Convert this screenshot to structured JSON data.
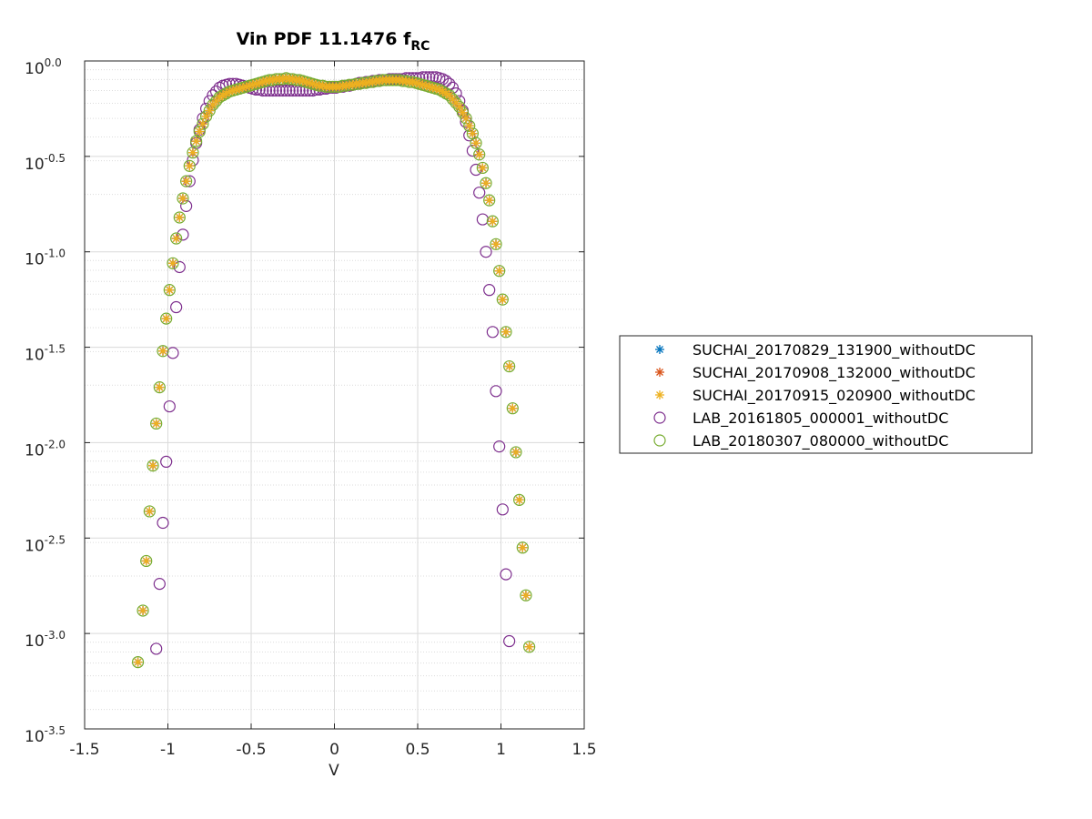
{
  "chart_data": {
    "type": "scatter",
    "title": "Vin PDF 11.1476 f",
    "title_subscript": "RC",
    "xlabel": "V",
    "ylabel": "",
    "xlim": [
      -1.5,
      1.5
    ],
    "ylim_log10": [
      -3.5,
      0
    ],
    "y_scale": "log",
    "x_ticks": [
      "-1.5",
      "-1",
      "-0.5",
      "0",
      "0.5",
      "1",
      "1.5"
    ],
    "y_ticks": [
      {
        "base": "10",
        "exp": "0.0"
      },
      {
        "base": "10",
        "exp": "-0.5"
      },
      {
        "base": "10",
        "exp": "-1.0"
      },
      {
        "base": "10",
        "exp": "-1.5"
      },
      {
        "base": "10",
        "exp": "-2.0"
      },
      {
        "base": "10",
        "exp": "-2.5"
      },
      {
        "base": "10",
        "exp": "-3.0"
      },
      {
        "base": "10",
        "exp": "-3.5"
      }
    ],
    "grid": true,
    "minor_grid": true,
    "legend_position": "outside-right",
    "series": [
      {
        "name": "SUCHAI_20170829_131900_withoutDC",
        "marker": "asterisk",
        "color": "#0072BD"
      },
      {
        "name": "SUCHAI_20170908_132000_withoutDC",
        "marker": "asterisk",
        "color": "#D95319"
      },
      {
        "name": "SUCHAI_20170915_020900_withoutDC",
        "marker": "asterisk",
        "color": "#EDB120"
      },
      {
        "name": "LAB_20161805_000001_withoutDC",
        "marker": "circle",
        "color": "#7E2F8E"
      },
      {
        "name": "LAB_20180307_080000_withoutDC",
        "marker": "circle",
        "color": "#77AC30"
      }
    ],
    "suchai_points": [
      [
        -1.18,
        -3.15
      ],
      [
        -1.15,
        -2.88
      ],
      [
        -1.13,
        -2.62
      ],
      [
        -1.11,
        -2.36
      ],
      [
        -1.09,
        -2.12
      ],
      [
        -1.07,
        -1.9
      ],
      [
        -1.05,
        -1.71
      ],
      [
        -1.03,
        -1.52
      ],
      [
        -1.01,
        -1.35
      ],
      [
        -0.99,
        -1.2
      ],
      [
        -0.97,
        -1.06
      ],
      [
        -0.95,
        -0.93
      ],
      [
        -0.93,
        -0.82
      ],
      [
        -0.91,
        -0.72
      ],
      [
        -0.89,
        -0.63
      ],
      [
        -0.87,
        -0.55
      ],
      [
        -0.85,
        -0.48
      ],
      [
        -0.83,
        -0.42
      ],
      [
        -0.81,
        -0.37
      ],
      [
        -0.79,
        -0.33
      ],
      [
        -0.77,
        -0.29
      ],
      [
        -0.75,
        -0.26
      ],
      [
        -0.73,
        -0.23
      ],
      [
        -0.71,
        -0.21
      ],
      [
        -0.69,
        -0.19
      ],
      [
        -0.67,
        -0.18
      ],
      [
        -0.65,
        -0.17
      ],
      [
        -0.63,
        -0.16
      ],
      [
        -0.61,
        -0.155
      ],
      [
        -0.59,
        -0.15
      ],
      [
        -0.57,
        -0.145
      ],
      [
        -0.55,
        -0.14
      ],
      [
        -0.53,
        -0.135
      ],
      [
        -0.51,
        -0.13
      ],
      [
        -0.49,
        -0.125
      ],
      [
        -0.47,
        -0.12
      ],
      [
        -0.45,
        -0.115
      ],
      [
        -0.43,
        -0.11
      ],
      [
        -0.41,
        -0.105
      ],
      [
        -0.39,
        -0.1
      ],
      [
        -0.37,
        -0.1
      ],
      [
        -0.35,
        -0.095
      ],
      [
        -0.33,
        -0.095
      ],
      [
        -0.31,
        -0.095
      ],
      [
        -0.29,
        -0.09
      ],
      [
        -0.27,
        -0.095
      ],
      [
        -0.25,
        -0.095
      ],
      [
        -0.23,
        -0.1
      ],
      [
        -0.21,
        -0.1
      ],
      [
        -0.19,
        -0.105
      ],
      [
        -0.17,
        -0.11
      ],
      [
        -0.15,
        -0.115
      ],
      [
        -0.13,
        -0.12
      ],
      [
        -0.11,
        -0.125
      ],
      [
        -0.09,
        -0.13
      ],
      [
        -0.07,
        -0.13
      ],
      [
        -0.05,
        -0.135
      ],
      [
        -0.03,
        -0.135
      ],
      [
        -0.01,
        -0.135
      ],
      [
        0.01,
        -0.135
      ],
      [
        0.03,
        -0.135
      ],
      [
        0.05,
        -0.13
      ],
      [
        0.07,
        -0.13
      ],
      [
        0.09,
        -0.125
      ],
      [
        0.11,
        -0.125
      ],
      [
        0.13,
        -0.12
      ],
      [
        0.15,
        -0.12
      ],
      [
        0.17,
        -0.115
      ],
      [
        0.19,
        -0.115
      ],
      [
        0.21,
        -0.11
      ],
      [
        0.23,
        -0.11
      ],
      [
        0.25,
        -0.105
      ],
      [
        0.27,
        -0.105
      ],
      [
        0.29,
        -0.1
      ],
      [
        0.31,
        -0.1
      ],
      [
        0.33,
        -0.1
      ],
      [
        0.35,
        -0.1
      ],
      [
        0.37,
        -0.1
      ],
      [
        0.39,
        -0.1
      ],
      [
        0.41,
        -0.105
      ],
      [
        0.43,
        -0.105
      ],
      [
        0.45,
        -0.11
      ],
      [
        0.47,
        -0.11
      ],
      [
        0.49,
        -0.115
      ],
      [
        0.51,
        -0.12
      ],
      [
        0.53,
        -0.125
      ],
      [
        0.55,
        -0.13
      ],
      [
        0.57,
        -0.135
      ],
      [
        0.59,
        -0.14
      ],
      [
        0.61,
        -0.145
      ],
      [
        0.63,
        -0.15
      ],
      [
        0.65,
        -0.16
      ],
      [
        0.67,
        -0.17
      ],
      [
        0.69,
        -0.18
      ],
      [
        0.71,
        -0.2
      ],
      [
        0.73,
        -0.22
      ],
      [
        0.75,
        -0.24
      ],
      [
        0.77,
        -0.27
      ],
      [
        0.79,
        -0.3
      ],
      [
        0.81,
        -0.34
      ],
      [
        0.83,
        -0.38
      ],
      [
        0.85,
        -0.43
      ],
      [
        0.87,
        -0.49
      ],
      [
        0.89,
        -0.56
      ],
      [
        0.91,
        -0.64
      ],
      [
        0.93,
        -0.73
      ],
      [
        0.95,
        -0.84
      ],
      [
        0.97,
        -0.96
      ],
      [
        0.99,
        -1.1
      ],
      [
        1.01,
        -1.25
      ],
      [
        1.03,
        -1.42
      ],
      [
        1.05,
        -1.6
      ],
      [
        1.07,
        -1.82
      ],
      [
        1.09,
        -2.05
      ],
      [
        1.11,
        -2.3
      ],
      [
        1.13,
        -2.55
      ],
      [
        1.15,
        -2.8
      ],
      [
        1.17,
        -3.07
      ]
    ],
    "lab_2016_points": [
      [
        -1.07,
        -3.08
      ],
      [
        -1.05,
        -2.74
      ],
      [
        -1.03,
        -2.42
      ],
      [
        -1.01,
        -2.1
      ],
      [
        -0.99,
        -1.81
      ],
      [
        -0.97,
        -1.53
      ],
      [
        -0.95,
        -1.29
      ],
      [
        -0.93,
        -1.08
      ],
      [
        -0.91,
        -0.91
      ],
      [
        -0.89,
        -0.76
      ],
      [
        -0.87,
        -0.63
      ],
      [
        -0.85,
        -0.52
      ],
      [
        -0.83,
        -0.43
      ],
      [
        -0.81,
        -0.36
      ],
      [
        -0.79,
        -0.3
      ],
      [
        -0.77,
        -0.25
      ],
      [
        -0.75,
        -0.21
      ],
      [
        -0.73,
        -0.18
      ],
      [
        -0.71,
        -0.16
      ],
      [
        -0.69,
        -0.14
      ],
      [
        -0.67,
        -0.13
      ],
      [
        -0.65,
        -0.125
      ],
      [
        -0.63,
        -0.12
      ],
      [
        -0.61,
        -0.12
      ],
      [
        -0.59,
        -0.12
      ],
      [
        -0.57,
        -0.125
      ],
      [
        -0.55,
        -0.13
      ],
      [
        -0.53,
        -0.135
      ],
      [
        -0.51,
        -0.14
      ],
      [
        -0.49,
        -0.145
      ],
      [
        -0.47,
        -0.15
      ],
      [
        -0.45,
        -0.15
      ],
      [
        -0.43,
        -0.155
      ],
      [
        -0.41,
        -0.155
      ],
      [
        -0.39,
        -0.155
      ],
      [
        -0.37,
        -0.155
      ],
      [
        -0.35,
        -0.155
      ],
      [
        -0.33,
        -0.155
      ],
      [
        -0.31,
        -0.155
      ],
      [
        -0.29,
        -0.155
      ],
      [
        -0.27,
        -0.155
      ],
      [
        -0.25,
        -0.155
      ],
      [
        -0.23,
        -0.155
      ],
      [
        -0.21,
        -0.155
      ],
      [
        -0.19,
        -0.155
      ],
      [
        -0.17,
        -0.155
      ],
      [
        -0.15,
        -0.155
      ],
      [
        -0.13,
        -0.155
      ],
      [
        -0.11,
        -0.15
      ],
      [
        -0.09,
        -0.15
      ],
      [
        -0.07,
        -0.145
      ],
      [
        -0.05,
        -0.145
      ],
      [
        -0.03,
        -0.14
      ],
      [
        -0.01,
        -0.14
      ],
      [
        0.01,
        -0.14
      ],
      [
        0.03,
        -0.135
      ],
      [
        0.05,
        -0.135
      ],
      [
        0.07,
        -0.13
      ],
      [
        0.09,
        -0.13
      ],
      [
        0.11,
        -0.125
      ],
      [
        0.13,
        -0.12
      ],
      [
        0.15,
        -0.115
      ],
      [
        0.17,
        -0.115
      ],
      [
        0.19,
        -0.11
      ],
      [
        0.21,
        -0.11
      ],
      [
        0.23,
        -0.105
      ],
      [
        0.25,
        -0.105
      ],
      [
        0.27,
        -0.1
      ],
      [
        0.29,
        -0.1
      ],
      [
        0.31,
        -0.1
      ],
      [
        0.33,
        -0.095
      ],
      [
        0.35,
        -0.095
      ],
      [
        0.37,
        -0.095
      ],
      [
        0.39,
        -0.095
      ],
      [
        0.41,
        -0.095
      ],
      [
        0.43,
        -0.09
      ],
      [
        0.45,
        -0.09
      ],
      [
        0.47,
        -0.09
      ],
      [
        0.49,
        -0.09
      ],
      [
        0.51,
        -0.09
      ],
      [
        0.53,
        -0.085
      ],
      [
        0.55,
        -0.085
      ],
      [
        0.57,
        -0.085
      ],
      [
        0.59,
        -0.085
      ],
      [
        0.61,
        -0.085
      ],
      [
        0.63,
        -0.09
      ],
      [
        0.65,
        -0.095
      ],
      [
        0.67,
        -0.105
      ],
      [
        0.69,
        -0.12
      ],
      [
        0.71,
        -0.14
      ],
      [
        0.73,
        -0.17
      ],
      [
        0.75,
        -0.21
      ],
      [
        0.77,
        -0.26
      ],
      [
        0.79,
        -0.32
      ],
      [
        0.81,
        -0.39
      ],
      [
        0.83,
        -0.47
      ],
      [
        0.85,
        -0.57
      ],
      [
        0.87,
        -0.69
      ],
      [
        0.89,
        -0.83
      ],
      [
        0.91,
        -1.0
      ],
      [
        0.93,
        -1.2
      ],
      [
        0.95,
        -1.42
      ],
      [
        0.97,
        -1.73
      ],
      [
        0.99,
        -2.02
      ],
      [
        1.01,
        -2.35
      ],
      [
        1.03,
        -2.69
      ],
      [
        1.05,
        -3.04
      ]
    ]
  }
}
